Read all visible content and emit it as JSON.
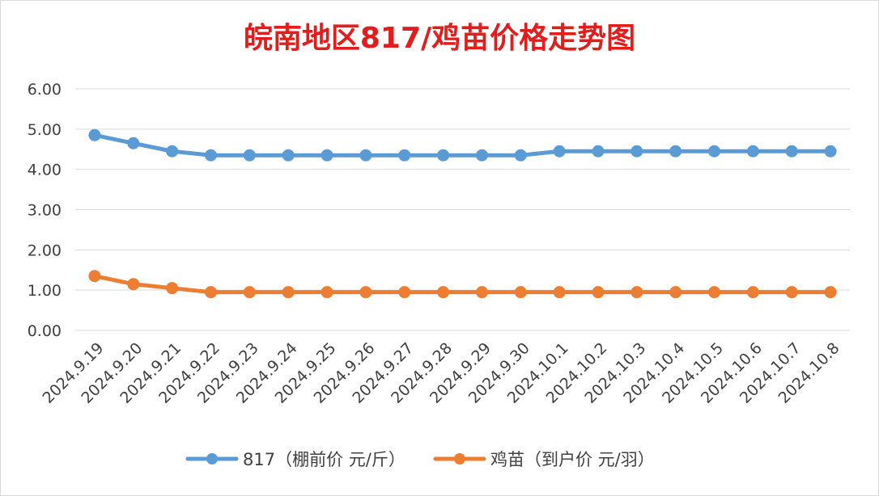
{
  "chart_data": {
    "type": "line",
    "title": "皖南地区817/鸡苗价格走势图",
    "xlabel": "",
    "ylabel": "",
    "ylim": [
      0,
      6
    ],
    "yticks": [
      "0.00",
      "1.00",
      "2.00",
      "3.00",
      "4.00",
      "5.00",
      "6.00"
    ],
    "grid": true,
    "legend_position": "bottom",
    "categories": [
      "2024.9.19",
      "2024.9.20",
      "2024.9.21",
      "2024.9.22",
      "2024.9.23",
      "2024.9.24",
      "2024.9.25",
      "2024.9.26",
      "2024.9.27",
      "2024.9.28",
      "2024.9.29",
      "2024.9.30",
      "2024.10.1",
      "2024.10.2",
      "2024.10.3",
      "2024.10.4",
      "2024.10.5",
      "2024.10.6",
      "2024.10.7",
      "2024.10.8"
    ],
    "series": [
      {
        "name": "817（棚前价 元/斤）",
        "color": "#5b9bd5",
        "values": [
          4.85,
          4.65,
          4.45,
          4.35,
          4.35,
          4.35,
          4.35,
          4.35,
          4.35,
          4.35,
          4.35,
          4.35,
          4.45,
          4.45,
          4.45,
          4.45,
          4.45,
          4.45,
          4.45,
          4.45
        ]
      },
      {
        "name": "鸡苗（到户价 元/羽）",
        "color": "#ed7d31",
        "values": [
          1.35,
          1.15,
          1.05,
          0.95,
          0.95,
          0.95,
          0.95,
          0.95,
          0.95,
          0.95,
          0.95,
          0.95,
          0.95,
          0.95,
          0.95,
          0.95,
          0.95,
          0.95,
          0.95,
          0.95
        ]
      }
    ]
  }
}
